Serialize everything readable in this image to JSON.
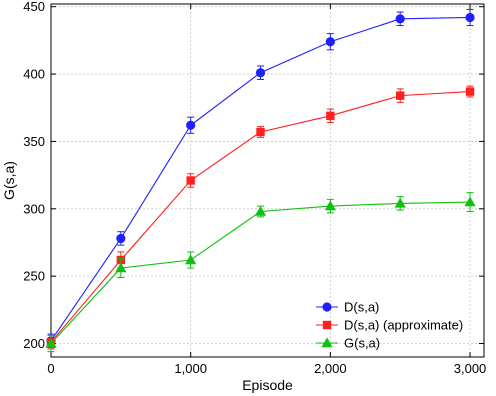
{
  "chart_data": {
    "type": "line",
    "xlabel": "Episode",
    "ylabel": "G(s,a)",
    "x": [
      0,
      500,
      1000,
      1500,
      2000,
      2500,
      3000
    ],
    "xlim": [
      0,
      3100
    ],
    "ylim": [
      190,
      452
    ],
    "xticks": [
      0,
      1000,
      2000,
      3000
    ],
    "xtick_labels": [
      "0",
      "1,000",
      "2,000",
      "3,000"
    ],
    "yticks": [
      200,
      250,
      300,
      350,
      400,
      450
    ],
    "ytick_labels": [
      "200",
      "250",
      "300",
      "350",
      "400",
      "450"
    ],
    "grid": true,
    "legend_position": "bottom-right",
    "series": [
      {
        "name": "D(s,a)",
        "color": "#1f1fff",
        "marker": "circle",
        "values": [
          202,
          278,
          362,
          401,
          424,
          441,
          442
        ],
        "errors": [
          5,
          5,
          6,
          5,
          6,
          5,
          6
        ]
      },
      {
        "name": "D(s,a) (approximate)",
        "color": "#ff2020",
        "marker": "square",
        "values": [
          201,
          262,
          321,
          357,
          369,
          384,
          387
        ],
        "errors": [
          5,
          6,
          5,
          4,
          5,
          5,
          4
        ]
      },
      {
        "name": "G(s,a)",
        "color": "#10c010",
        "marker": "triangle",
        "values": [
          200,
          256,
          262,
          298,
          302,
          304,
          305
        ],
        "errors": [
          6,
          7,
          6,
          4,
          5,
          5,
          7
        ]
      }
    ]
  }
}
